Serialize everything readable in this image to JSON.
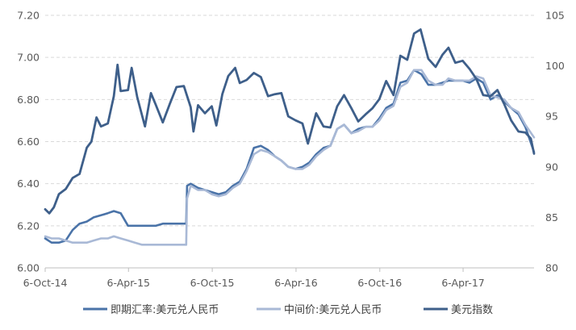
{
  "chart_data": {
    "type": "line",
    "title": "",
    "x_tick_labels": [
      "6-Oct-14",
      "6-Apr-15",
      "6-Oct-15",
      "6-Apr-16",
      "6-Oct-16",
      "6-Apr-17"
    ],
    "x_tick_dates": [
      "2014-10-06",
      "2015-04-06",
      "2015-10-06",
      "2016-04-06",
      "2016-10-06",
      "2017-04-06"
    ],
    "x_range": [
      "2014-10-06",
      "2017-09-08"
    ],
    "y_left": {
      "ylim": [
        6.0,
        7.2
      ],
      "ticks": [
        "6.00",
        "6.20",
        "6.40",
        "6.60",
        "6.80",
        "7.00",
        "7.20"
      ]
    },
    "y_right": {
      "ylim": [
        80,
        105
      ],
      "ticks": [
        "80",
        "85",
        "90",
        "95",
        "100",
        "105"
      ]
    },
    "grid": "horizontal dashed",
    "legend_position": "bottom",
    "series": [
      {
        "name": "即期汇率:美元兑人民币",
        "axis": "left",
        "color": "#4a73a8",
        "points": [
          [
            "2014-10-06",
            6.14
          ],
          [
            "2014-10-20",
            6.12
          ],
          [
            "2014-11-05",
            6.12
          ],
          [
            "2014-11-20",
            6.13
          ],
          [
            "2014-12-05",
            6.18
          ],
          [
            "2014-12-20",
            6.21
          ],
          [
            "2015-01-05",
            6.22
          ],
          [
            "2015-01-20",
            6.24
          ],
          [
            "2015-02-05",
            6.25
          ],
          [
            "2015-02-20",
            6.26
          ],
          [
            "2015-03-05",
            6.27
          ],
          [
            "2015-03-20",
            6.26
          ],
          [
            "2015-04-05",
            6.2
          ],
          [
            "2015-04-20",
            6.2
          ],
          [
            "2015-05-05",
            6.2
          ],
          [
            "2015-05-20",
            6.2
          ],
          [
            "2015-06-05",
            6.2
          ],
          [
            "2015-06-20",
            6.21
          ],
          [
            "2015-07-05",
            6.21
          ],
          [
            "2015-07-20",
            6.21
          ],
          [
            "2015-08-10",
            6.21
          ],
          [
            "2015-08-12",
            6.39
          ],
          [
            "2015-08-20",
            6.4
          ],
          [
            "2015-09-05",
            6.38
          ],
          [
            "2015-09-20",
            6.37
          ],
          [
            "2015-10-05",
            6.36
          ],
          [
            "2015-10-20",
            6.35
          ],
          [
            "2015-11-05",
            6.36
          ],
          [
            "2015-11-20",
            6.39
          ],
          [
            "2015-12-05",
            6.41
          ],
          [
            "2015-12-20",
            6.47
          ],
          [
            "2016-01-05",
            6.57
          ],
          [
            "2016-01-20",
            6.58
          ],
          [
            "2016-02-05",
            6.56
          ],
          [
            "2016-02-20",
            6.53
          ],
          [
            "2016-03-05",
            6.51
          ],
          [
            "2016-03-20",
            6.48
          ],
          [
            "2016-04-05",
            6.47
          ],
          [
            "2016-04-20",
            6.48
          ],
          [
            "2016-05-05",
            6.5
          ],
          [
            "2016-05-20",
            6.54
          ],
          [
            "2016-06-05",
            6.57
          ],
          [
            "2016-06-20",
            6.58
          ],
          [
            "2016-07-05",
            6.66
          ],
          [
            "2016-07-20",
            6.68
          ],
          [
            "2016-08-05",
            6.64
          ],
          [
            "2016-08-20",
            6.66
          ],
          [
            "2016-09-05",
            6.67
          ],
          [
            "2016-09-20",
            6.67
          ],
          [
            "2016-10-05",
            6.71
          ],
          [
            "2016-10-20",
            6.76
          ],
          [
            "2016-11-05",
            6.78
          ],
          [
            "2016-11-20",
            6.88
          ],
          [
            "2016-12-05",
            6.89
          ],
          [
            "2016-12-20",
            6.94
          ],
          [
            "2017-01-05",
            6.92
          ],
          [
            "2017-01-20",
            6.87
          ],
          [
            "2017-02-05",
            6.87
          ],
          [
            "2017-02-20",
            6.88
          ],
          [
            "2017-03-05",
            6.89
          ],
          [
            "2017-03-20",
            6.89
          ],
          [
            "2017-04-05",
            6.89
          ],
          [
            "2017-04-20",
            6.88
          ],
          [
            "2017-05-05",
            6.9
          ],
          [
            "2017-05-20",
            6.88
          ],
          [
            "2017-06-05",
            6.8
          ],
          [
            "2017-06-20",
            6.82
          ],
          [
            "2017-07-05",
            6.79
          ],
          [
            "2017-07-20",
            6.76
          ],
          [
            "2017-08-05",
            6.73
          ],
          [
            "2017-08-20",
            6.67
          ],
          [
            "2017-09-08",
            6.55
          ]
        ]
      },
      {
        "name": "中间价:美元兑人民币",
        "axis": "left",
        "color": "#a9b9d6",
        "points": [
          [
            "2014-10-06",
            6.15
          ],
          [
            "2014-10-20",
            6.14
          ],
          [
            "2014-11-05",
            6.14
          ],
          [
            "2014-11-20",
            6.13
          ],
          [
            "2014-12-05",
            6.12
          ],
          [
            "2014-12-20",
            6.12
          ],
          [
            "2015-01-05",
            6.12
          ],
          [
            "2015-01-20",
            6.13
          ],
          [
            "2015-02-05",
            6.14
          ],
          [
            "2015-02-20",
            6.14
          ],
          [
            "2015-03-05",
            6.15
          ],
          [
            "2015-03-20",
            6.14
          ],
          [
            "2015-04-05",
            6.13
          ],
          [
            "2015-04-20",
            6.12
          ],
          [
            "2015-05-05",
            6.11
          ],
          [
            "2015-05-20",
            6.11
          ],
          [
            "2015-06-05",
            6.11
          ],
          [
            "2015-06-20",
            6.11
          ],
          [
            "2015-07-05",
            6.11
          ],
          [
            "2015-07-20",
            6.11
          ],
          [
            "2015-08-10",
            6.11
          ],
          [
            "2015-08-12",
            6.33
          ],
          [
            "2015-08-20",
            6.39
          ],
          [
            "2015-09-05",
            6.37
          ],
          [
            "2015-09-20",
            6.37
          ],
          [
            "2015-10-05",
            6.35
          ],
          [
            "2015-10-20",
            6.34
          ],
          [
            "2015-11-05",
            6.35
          ],
          [
            "2015-11-20",
            6.38
          ],
          [
            "2015-12-05",
            6.4
          ],
          [
            "2015-12-20",
            6.46
          ],
          [
            "2016-01-05",
            6.54
          ],
          [
            "2016-01-20",
            6.56
          ],
          [
            "2016-02-05",
            6.55
          ],
          [
            "2016-02-20",
            6.53
          ],
          [
            "2016-03-05",
            6.51
          ],
          [
            "2016-03-20",
            6.48
          ],
          [
            "2016-04-05",
            6.47
          ],
          [
            "2016-04-20",
            6.47
          ],
          [
            "2016-05-05",
            6.49
          ],
          [
            "2016-05-20",
            6.53
          ],
          [
            "2016-06-05",
            6.56
          ],
          [
            "2016-06-20",
            6.58
          ],
          [
            "2016-07-05",
            6.66
          ],
          [
            "2016-07-20",
            6.68
          ],
          [
            "2016-08-05",
            6.64
          ],
          [
            "2016-08-20",
            6.65
          ],
          [
            "2016-09-05",
            6.67
          ],
          [
            "2016-09-20",
            6.67
          ],
          [
            "2016-10-05",
            6.7
          ],
          [
            "2016-10-20",
            6.75
          ],
          [
            "2016-11-05",
            6.77
          ],
          [
            "2016-11-20",
            6.86
          ],
          [
            "2016-12-05",
            6.88
          ],
          [
            "2016-12-20",
            6.94
          ],
          [
            "2017-01-05",
            6.94
          ],
          [
            "2017-01-20",
            6.89
          ],
          [
            "2017-02-05",
            6.87
          ],
          [
            "2017-02-20",
            6.87
          ],
          [
            "2017-03-05",
            6.9
          ],
          [
            "2017-03-20",
            6.89
          ],
          [
            "2017-04-05",
            6.89
          ],
          [
            "2017-04-20",
            6.89
          ],
          [
            "2017-05-05",
            6.91
          ],
          [
            "2017-05-20",
            6.9
          ],
          [
            "2017-06-05",
            6.82
          ],
          [
            "2017-06-20",
            6.81
          ],
          [
            "2017-07-05",
            6.8
          ],
          [
            "2017-07-20",
            6.76
          ],
          [
            "2017-08-05",
            6.74
          ],
          [
            "2017-08-20",
            6.68
          ],
          [
            "2017-09-08",
            6.62
          ]
        ]
      },
      {
        "name": "美元指数",
        "axis": "right",
        "color": "#3e5f8a",
        "points": [
          [
            "2014-10-06",
            85.8
          ],
          [
            "2014-10-15",
            85.4
          ],
          [
            "2014-10-25",
            86.0
          ],
          [
            "2014-11-05",
            87.3
          ],
          [
            "2014-11-20",
            87.8
          ],
          [
            "2014-12-05",
            88.9
          ],
          [
            "2014-12-20",
            89.3
          ],
          [
            "2015-01-05",
            91.9
          ],
          [
            "2015-01-15",
            92.5
          ],
          [
            "2015-01-26",
            94.9
          ],
          [
            "2015-02-05",
            94.0
          ],
          [
            "2015-02-20",
            94.3
          ],
          [
            "2015-03-05",
            97.0
          ],
          [
            "2015-03-13",
            100.1
          ],
          [
            "2015-03-20",
            97.5
          ],
          [
            "2015-04-05",
            97.6
          ],
          [
            "2015-04-13",
            99.8
          ],
          [
            "2015-04-25",
            96.9
          ],
          [
            "2015-05-12",
            94.0
          ],
          [
            "2015-05-25",
            97.3
          ],
          [
            "2015-06-05",
            96.1
          ],
          [
            "2015-06-20",
            94.4
          ],
          [
            "2015-07-05",
            96.2
          ],
          [
            "2015-07-20",
            97.9
          ],
          [
            "2015-08-05",
            98.0
          ],
          [
            "2015-08-20",
            95.9
          ],
          [
            "2015-08-26",
            93.5
          ],
          [
            "2015-09-05",
            96.1
          ],
          [
            "2015-09-20",
            95.3
          ],
          [
            "2015-10-05",
            96.0
          ],
          [
            "2015-10-15",
            94.1
          ],
          [
            "2015-10-28",
            97.2
          ],
          [
            "2015-11-10",
            99.0
          ],
          [
            "2015-11-25",
            99.8
          ],
          [
            "2015-12-05",
            98.3
          ],
          [
            "2015-12-20",
            98.6
          ],
          [
            "2016-01-05",
            99.3
          ],
          [
            "2016-01-20",
            98.9
          ],
          [
            "2016-02-05",
            97.0
          ],
          [
            "2016-02-20",
            97.2
          ],
          [
            "2016-03-05",
            97.3
          ],
          [
            "2016-03-20",
            95.0
          ],
          [
            "2016-04-05",
            94.6
          ],
          [
            "2016-04-20",
            94.3
          ],
          [
            "2016-05-02",
            92.3
          ],
          [
            "2016-05-20",
            95.3
          ],
          [
            "2016-06-05",
            94.0
          ],
          [
            "2016-06-20",
            93.9
          ],
          [
            "2016-07-05",
            96.0
          ],
          [
            "2016-07-20",
            97.1
          ],
          [
            "2016-08-05",
            95.8
          ],
          [
            "2016-08-20",
            94.5
          ],
          [
            "2016-09-05",
            95.2
          ],
          [
            "2016-09-20",
            95.8
          ],
          [
            "2016-10-05",
            96.7
          ],
          [
            "2016-10-20",
            98.5
          ],
          [
            "2016-11-05",
            97.1
          ],
          [
            "2016-11-20",
            101.0
          ],
          [
            "2016-12-05",
            100.6
          ],
          [
            "2016-12-20",
            103.2
          ],
          [
            "2017-01-03",
            103.6
          ],
          [
            "2017-01-20",
            100.7
          ],
          [
            "2017-02-05",
            99.9
          ],
          [
            "2017-02-20",
            101.1
          ],
          [
            "2017-03-05",
            101.8
          ],
          [
            "2017-03-20",
            100.3
          ],
          [
            "2017-04-05",
            100.5
          ],
          [
            "2017-04-20",
            99.7
          ],
          [
            "2017-05-05",
            98.7
          ],
          [
            "2017-05-20",
            97.1
          ],
          [
            "2017-06-05",
            97.0
          ],
          [
            "2017-06-20",
            97.6
          ],
          [
            "2017-07-05",
            96.2
          ],
          [
            "2017-07-20",
            94.6
          ],
          [
            "2017-08-05",
            93.5
          ],
          [
            "2017-08-20",
            93.4
          ],
          [
            "2017-09-01",
            92.8
          ],
          [
            "2017-09-08",
            91.3
          ]
        ]
      }
    ]
  }
}
